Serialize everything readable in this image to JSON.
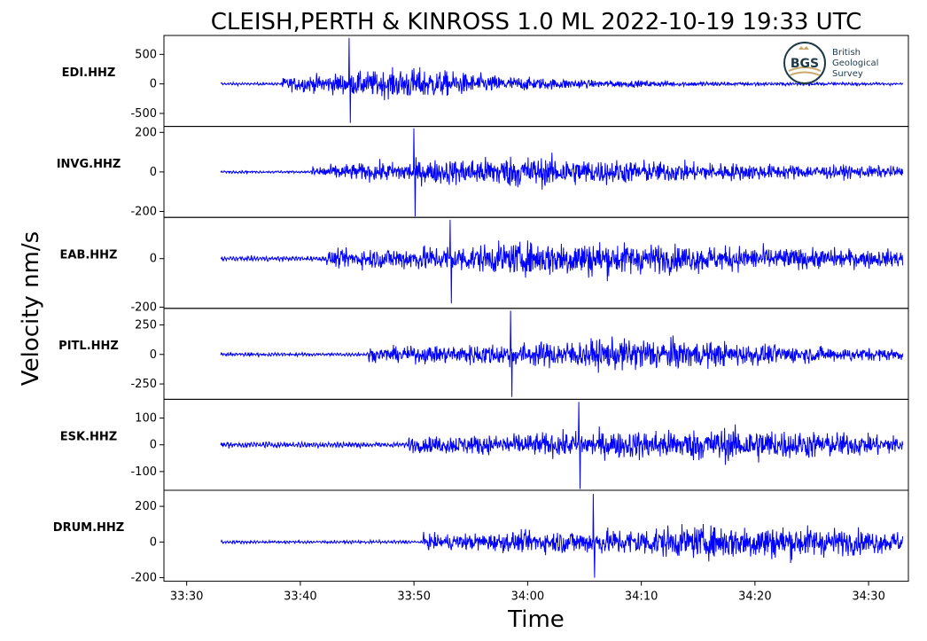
{
  "chart_data": {
    "type": "line",
    "title": "CLEISH,PERTH & KINROSS 1.0 ML   2022-10-19 19:33 UTC",
    "xlabel": "Time",
    "ylabel": "Velocity nm/s",
    "x_ticks": [
      "33:30",
      "33:40",
      "33:50",
      "34:00",
      "34:10",
      "34:20",
      "34:30"
    ],
    "x_tick_seconds": [
      0,
      10,
      20,
      30,
      40,
      50,
      60
    ],
    "xlim_seconds": [
      -2.0,
      63.5
    ],
    "trace_seconds": [
      3.0,
      63.0
    ],
    "line_color": "#0000ff",
    "logo": {
      "name": "bgs-logo",
      "initials": "BGS",
      "lines": [
        "British",
        "Geological",
        "Survey"
      ],
      "color": "#1d3a4a"
    },
    "series": [
      {
        "name": "EDI.HHZ",
        "ylim": [
          -720,
          820
        ],
        "yticks": [
          -500,
          0,
          500
        ],
        "ytick_labels": [
          "-500",
          "0",
          "500"
        ],
        "noise": 18,
        "onset": 8.3,
        "peak": 780,
        "trough": -660,
        "max_amp": 300,
        "decay": 10,
        "env_peak": 12
      },
      {
        "name": "INVG.HHZ",
        "ylim": [
          -230,
          230
        ],
        "yticks": [
          -200,
          0,
          200
        ],
        "ytick_labels": [
          "-200",
          "0",
          "200"
        ],
        "noise": 5,
        "onset": 11.0,
        "peak": 220,
        "trough": -225,
        "max_amp": 90,
        "decay": 28,
        "env_peak": 18
      },
      {
        "name": "EAB.HHZ",
        "ylim": [
          -205,
          170
        ],
        "yticks": [
          -200,
          0
        ],
        "ytick_labels": [
          "-200",
          "0"
        ],
        "noise": 8,
        "onset": 12.2,
        "peak": 160,
        "trough": -185,
        "max_amp": 80,
        "decay": 30,
        "env_peak": 22
      },
      {
        "name": "PITL.HHZ",
        "ylim": [
          -380,
          390
        ],
        "yticks": [
          -250,
          0,
          250
        ],
        "ytick_labels": [
          "-250",
          "0",
          "250"
        ],
        "noise": 12,
        "onset": 16.0,
        "peak": 370,
        "trough": -360,
        "max_amp": 150,
        "decay": 18,
        "env_peak": 25
      },
      {
        "name": "ESK.HHZ",
        "ylim": [
          -170,
          170
        ],
        "yticks": [
          -100,
          0,
          100
        ],
        "ytick_labels": [
          "-100",
          "0",
          "100"
        ],
        "noise": 9,
        "onset": 19.5,
        "peak": 160,
        "trough": -165,
        "max_amp": 65,
        "decay": 18,
        "env_peak": 30
      },
      {
        "name": "DRUM.HHZ",
        "ylim": [
          -220,
          290
        ],
        "yticks": [
          -200,
          0,
          200
        ],
        "ytick_labels": [
          "-200",
          "0",
          "200"
        ],
        "noise": 7,
        "onset": 20.8,
        "peak": 270,
        "trough": -200,
        "max_amp": 110,
        "decay": 20,
        "env_peak": 30
      }
    ]
  }
}
